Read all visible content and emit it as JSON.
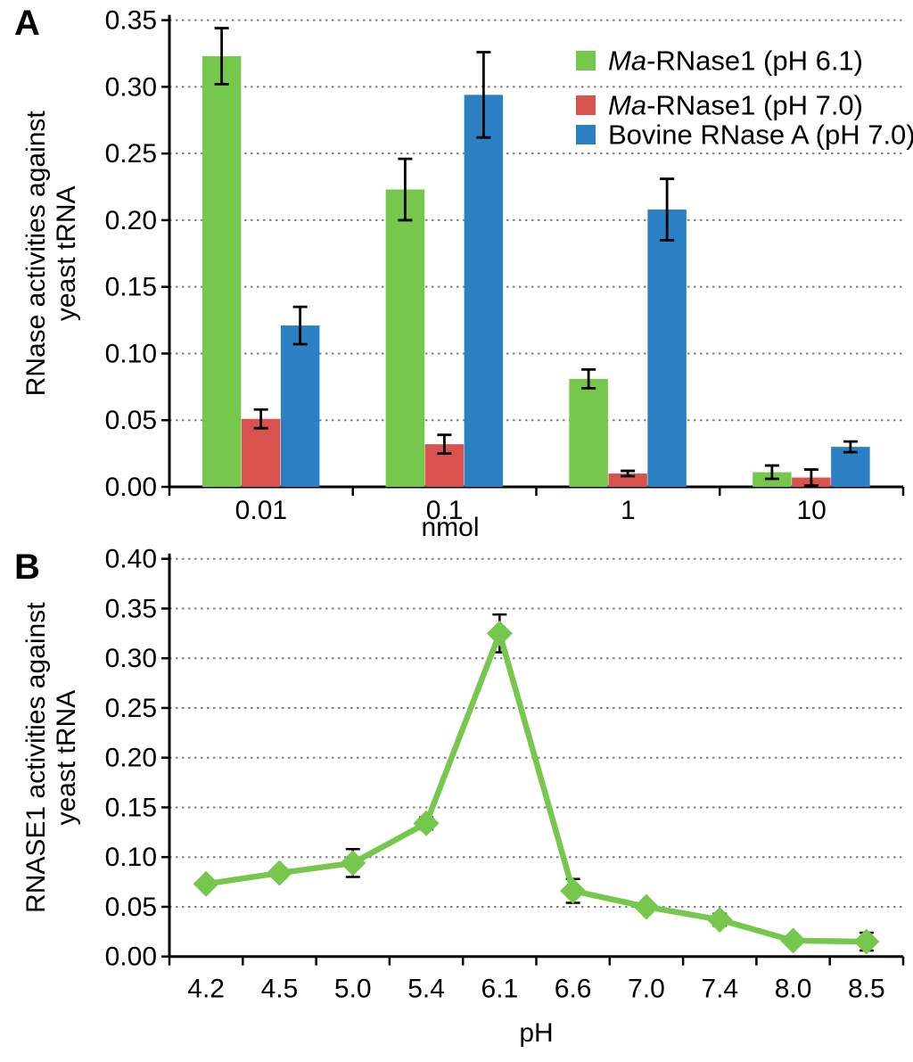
{
  "figure": {
    "panel_a_label": "A",
    "panel_b_label": "B"
  },
  "colors": {
    "green": "#76C84C",
    "red": "#D9534E",
    "blue": "#2B80C4",
    "axis": "#000000",
    "gridline": "#808080"
  },
  "chart_data": [
    {
      "type": "bar",
      "panel": "A",
      "xlabel": "nmol",
      "ylabel": "RNase activities against yeast tRNA",
      "ylabel_lines": [
        "RNase activities against",
        "yeast tRNA"
      ],
      "ylim": [
        0,
        0.35
      ],
      "ytick_step": 0.05,
      "ytick_labels": [
        "0.00",
        "0.05",
        "0.10",
        "0.15",
        "0.20",
        "0.25",
        "0.30",
        "0.35"
      ],
      "categories": [
        "0.01",
        "0.1",
        "1",
        "10"
      ],
      "grid": "dotted-horizontal",
      "legend_position": "top-right",
      "legend": [
        {
          "italic": "Ma",
          "label": "-RNase1  (pH 6.1)",
          "color": "#76C84C"
        },
        {
          "italic": "Ma",
          "label": "-RNase1  (pH 7.0)",
          "color": "#D9534E"
        },
        {
          "italic": "",
          "label": "Bovine RNase A (pH 7.0)",
          "color": "#2B80C4"
        }
      ],
      "series": [
        {
          "name": "Ma-RNase1 (pH 6.1)",
          "color": "#76C84C",
          "values": [
            0.323,
            0.223,
            0.081,
            0.011
          ],
          "errors": [
            0.021,
            0.023,
            0.007,
            0.005
          ]
        },
        {
          "name": "Ma-RNase1 (pH 7.0)",
          "color": "#D9534E",
          "values": [
            0.051,
            0.032,
            0.01,
            0.007
          ],
          "errors": [
            0.007,
            0.007,
            0.002,
            0.006
          ]
        },
        {
          "name": "Bovine RNase A (pH 7.0)",
          "color": "#2B80C4",
          "values": [
            0.121,
            0.294,
            0.208,
            0.03
          ],
          "errors": [
            0.014,
            0.032,
            0.023,
            0.004
          ]
        }
      ]
    },
    {
      "type": "line",
      "panel": "B",
      "xlabel": "pH",
      "ylabel": "RNASE1 activities against yeast tRNA",
      "ylabel_lines": [
        "RNASE1 activities against",
        "yeast tRNA"
      ],
      "ylim": [
        0,
        0.4
      ],
      "ytick_step": 0.05,
      "ytick_labels": [
        "0.00",
        "0.05",
        "0.10",
        "0.15",
        "0.20",
        "0.25",
        "0.30",
        "0.35",
        "0.40"
      ],
      "categories": [
        "4.2",
        "4.5",
        "5.0",
        "5.4",
        "6.1",
        "6.6",
        "7.0",
        "7.4",
        "8.0",
        "8.5"
      ],
      "grid": "dotted-horizontal",
      "series": [
        {
          "name": "Ma-RNase1",
          "color": "#76C84C",
          "marker": "diamond",
          "values": [
            0.073,
            0.084,
            0.094,
            0.134,
            0.325,
            0.066,
            0.05,
            0.037,
            0.016,
            0.015
          ],
          "errors": [
            0.004,
            0.005,
            0.014,
            0.006,
            0.019,
            0.012,
            0.004,
            0.006,
            0.004,
            0.009
          ]
        }
      ]
    }
  ]
}
